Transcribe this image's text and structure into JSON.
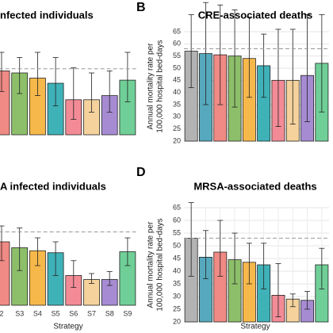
{
  "chart_data": [
    {
      "type": "bar",
      "title": "nfected individuals",
      "categories": [
        null,
        null,
        null,
        null,
        null,
        null,
        null,
        null
      ],
      "values": [
        62,
        60,
        55,
        50,
        34,
        34,
        38,
        53
      ],
      "error_low": [
        42,
        40,
        38,
        28,
        15,
        22,
        22,
        32
      ],
      "error_high": [
        80,
        75,
        80,
        75,
        65,
        60,
        62,
        80
      ],
      "colors": [
        "#f08a84",
        "#8dbf6a",
        "#f7b84b",
        "#3fb2b8",
        "#f38b96",
        "#f5d29c",
        "#a68bd2",
        "#6fcf97"
      ],
      "hline": 64,
      "ylim": [
        0,
        100
      ]
    },
    {
      "type": "bar",
      "title": "CRE-associated deaths",
      "panel": "B",
      "ylabel": [
        "Annual mortality rate per",
        "100,000 hospital bed-days"
      ],
      "categories": [
        null,
        null,
        null,
        null,
        null,
        null,
        null,
        null,
        null,
        null
      ],
      "values": [
        57,
        56,
        55.5,
        55,
        54,
        51,
        45,
        45,
        47,
        52
      ],
      "error_low": [
        42,
        35,
        35,
        34,
        38,
        38,
        26,
        27,
        28,
        32
      ],
      "error_high": [
        72,
        77,
        76,
        74,
        71,
        64,
        66,
        66,
        72,
        72
      ],
      "colors": [
        "#b3b3b3",
        "#56a9bd",
        "#f08a84",
        "#8dbf6a",
        "#f7b84b",
        "#3fb2b8",
        "#f38b96",
        "#f5d29c",
        "#a68bd2",
        "#6fcf97"
      ],
      "hline": 58,
      "ylim": [
        20,
        65
      ],
      "yticks": [
        20,
        25,
        30,
        35,
        40,
        45,
        50,
        55,
        60,
        65
      ],
      "grid": true
    },
    {
      "type": "bar",
      "title": "A infected individuals",
      "xlabel": "Strategy",
      "categories": [
        "2",
        "S3",
        "S4",
        "S5",
        "S6",
        "S7",
        "S8",
        "S9"
      ],
      "values": [
        64,
        58,
        55,
        53,
        30,
        26,
        26,
        54
      ],
      "error_low": [
        45,
        35,
        40,
        30,
        18,
        22,
        20,
        40
      ],
      "error_high": [
        80,
        78,
        68,
        64,
        45,
        32,
        34,
        68
      ],
      "colors": [
        "#f08a84",
        "#8dbf6a",
        "#f7b84b",
        "#3fb2b8",
        "#f38b96",
        "#f5d29c",
        "#a68bd2",
        "#6fcf97"
      ],
      "hline": 74,
      "ylim": [
        0,
        100
      ]
    },
    {
      "type": "bar",
      "title": "MRSA-associated deaths",
      "panel": "D",
      "xlabel": "Strategy",
      "ylabel": [
        "Annual mortality rate per",
        "100,000 hospital bed-days"
      ],
      "categories": [
        null,
        null,
        null,
        null,
        null,
        null,
        null,
        null,
        null,
        null
      ],
      "values": [
        53,
        45.5,
        47.5,
        44.5,
        43.5,
        42.5,
        30.5,
        29,
        28.5,
        42.5
      ],
      "error_low": [
        38,
        37,
        38,
        35,
        35,
        33,
        22,
        26,
        25,
        33
      ],
      "error_high": [
        67,
        56,
        60,
        55,
        51,
        51,
        43,
        31,
        32,
        49
      ],
      "colors": [
        "#b3b3b3",
        "#56a9bd",
        "#f08a84",
        "#8dbf6a",
        "#f7b84b",
        "#3fb2b8",
        "#f38b96",
        "#f5d29c",
        "#a68bd2",
        "#6fcf97"
      ],
      "hline": 53,
      "ylim": [
        20,
        65
      ],
      "yticks": [
        20,
        25,
        30,
        35,
        40,
        45,
        50,
        55,
        60,
        65
      ],
      "grid": true
    }
  ]
}
